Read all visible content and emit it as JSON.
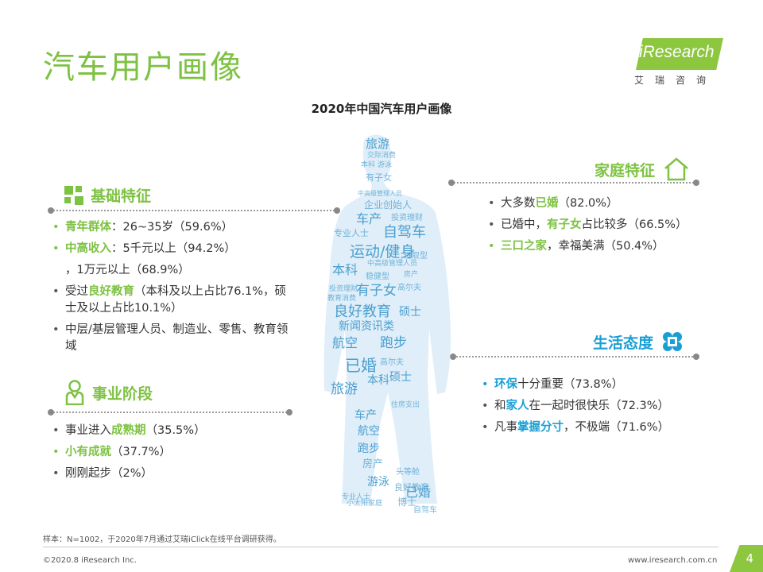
{
  "page": {
    "title": "汽车用户画像",
    "subtitle": "2020年中国汽车用户画像",
    "page_number": "4"
  },
  "logo": {
    "word": "iResearch",
    "sub": "艾瑞咨询"
  },
  "colors": {
    "green": "#7dc242",
    "blue": "#1a9fd5",
    "figure": "#4a9fd0"
  },
  "basic": {
    "header": "基础特征",
    "icon": "blocks-icon",
    "items": [
      {
        "parts": [
          {
            "t": "青年群体",
            "hl": "g"
          },
          {
            "t": "：26~35岁（59.6%）"
          }
        ],
        "bullet": "g"
      },
      {
        "parts": [
          {
            "t": "中高收入",
            "hl": "g"
          },
          {
            "t": "：5千元以上（94.2%）"
          }
        ],
        "bullet": "g"
      },
      {
        "parts": [
          {
            "t": "，1万元以上（68.9%）"
          }
        ],
        "bullet": "none"
      },
      {
        "parts": [
          {
            "t": "受过"
          },
          {
            "t": "良好教育",
            "hl": "g"
          },
          {
            "t": "（本科及以上占比76.1%，硕士及以上占比10.1%）"
          }
        ],
        "bullet": "n"
      },
      {
        "parts": [
          {
            "t": "中层/基层管理人员、制造业、零售、教育领域"
          }
        ],
        "bullet": "n"
      }
    ]
  },
  "career": {
    "header": "事业阶段",
    "icon": "person-icon",
    "items": [
      {
        "parts": [
          {
            "t": "事业进入"
          },
          {
            "t": "成熟期",
            "hl": "g"
          },
          {
            "t": "（35.5%）"
          }
        ],
        "bullet": "n"
      },
      {
        "parts": [
          {
            "t": "小有成就",
            "hl": "g"
          },
          {
            "t": "（37.7%）"
          }
        ],
        "bullet": "g"
      },
      {
        "parts": [
          {
            "t": "刚刚起步（2%）"
          }
        ],
        "bullet": "n"
      }
    ]
  },
  "family": {
    "header": "家庭特征",
    "icon": "house-icon",
    "items": [
      {
        "parts": [
          {
            "t": "大多数"
          },
          {
            "t": "已婚",
            "hl": "g"
          },
          {
            "t": "（82.0%）"
          }
        ],
        "bullet": "n"
      },
      {
        "parts": [
          {
            "t": "已婚中，"
          },
          {
            "t": "有子女",
            "hl": "g"
          },
          {
            "t": "占比较多（66.5%）"
          }
        ],
        "bullet": "n"
      },
      {
        "parts": [
          {
            "t": "三口之家",
            "hl": "g"
          },
          {
            "t": "，幸福美满（50.4%）"
          }
        ],
        "bullet": "g"
      }
    ]
  },
  "attitude": {
    "header": "生活态度",
    "icon": "clover-icon",
    "items": [
      {
        "parts": [
          {
            "t": "环保",
            "hl": "b"
          },
          {
            "t": "十分重要（73.8%）"
          }
        ],
        "bullet": "b"
      },
      {
        "parts": [
          {
            "t": "和"
          },
          {
            "t": "家人",
            "hl": "b"
          },
          {
            "t": "在一起时很快乐（72.3%）"
          }
        ],
        "bullet": "n"
      },
      {
        "parts": [
          {
            "t": "凡事"
          },
          {
            "t": "掌握分寸",
            "hl": "b"
          },
          {
            "t": "，不极端（71.6%）"
          }
        ],
        "bullet": "n"
      }
    ]
  },
  "wordcloud": [
    {
      "t": "旅游",
      "s": 15
    },
    {
      "t": "交际消费",
      "s": 9
    },
    {
      "t": "本科 游泳",
      "s": 9
    },
    {
      "t": "有子女",
      "s": 11
    },
    {
      "t": "中高级管理人员",
      "s": 8
    },
    {
      "t": "企业创始人",
      "s": 12
    },
    {
      "t": "车产",
      "s": 16
    },
    {
      "t": "投资理财",
      "s": 10
    },
    {
      "t": "自驾车",
      "s": 18
    },
    {
      "t": "专业人士",
      "s": 11
    },
    {
      "t": "运动/健身",
      "s": 19
    },
    {
      "t": "进取型",
      "s": 10
    },
    {
      "t": "中高级管理人员",
      "s": 9
    },
    {
      "t": "本科",
      "s": 16
    },
    {
      "t": "稳健型",
      "s": 10
    },
    {
      "t": "房产",
      "s": 9
    },
    {
      "t": "有子女",
      "s": 17
    },
    {
      "t": "高尔夫",
      "s": 10
    },
    {
      "t": "投资理财",
      "s": 9
    },
    {
      "t": "教育消费",
      "s": 9
    },
    {
      "t": "良好教育",
      "s": 18
    },
    {
      "t": "硕士",
      "s": 14
    },
    {
      "t": "新闻资讯类",
      "s": 14
    },
    {
      "t": "航空",
      "s": 16
    },
    {
      "t": "跑步",
      "s": 17
    },
    {
      "t": "已婚",
      "s": 20
    },
    {
      "t": "高尔夫",
      "s": 10
    },
    {
      "t": "本科",
      "s": 14
    },
    {
      "t": "硕士",
      "s": 14
    },
    {
      "t": "旅游",
      "s": 17
    },
    {
      "t": "住房支出",
      "s": 9
    },
    {
      "t": "车产",
      "s": 14
    },
    {
      "t": "航空",
      "s": 14
    },
    {
      "t": "跑步",
      "s": 14
    },
    {
      "t": "房产",
      "s": 13
    },
    {
      "t": "游泳",
      "s": 14
    },
    {
      "t": "头等舱",
      "s": 10
    },
    {
      "t": "良好教育",
      "s": 11
    },
    {
      "t": "博士",
      "s": 12
    },
    {
      "t": "专业人士",
      "s": 9
    },
    {
      "t": "已婚",
      "s": 16
    },
    {
      "t": "小太阳家庭",
      "s": 9
    },
    {
      "t": "自驾车",
      "s": 10
    }
  ],
  "footer": {
    "note": "样本：N=1002，于2020年7月通过艾瑞iClick在线平台调研获得。",
    "copyright": "©2020.8 iResearch Inc.",
    "website": "www.iresearch.com.cn"
  }
}
